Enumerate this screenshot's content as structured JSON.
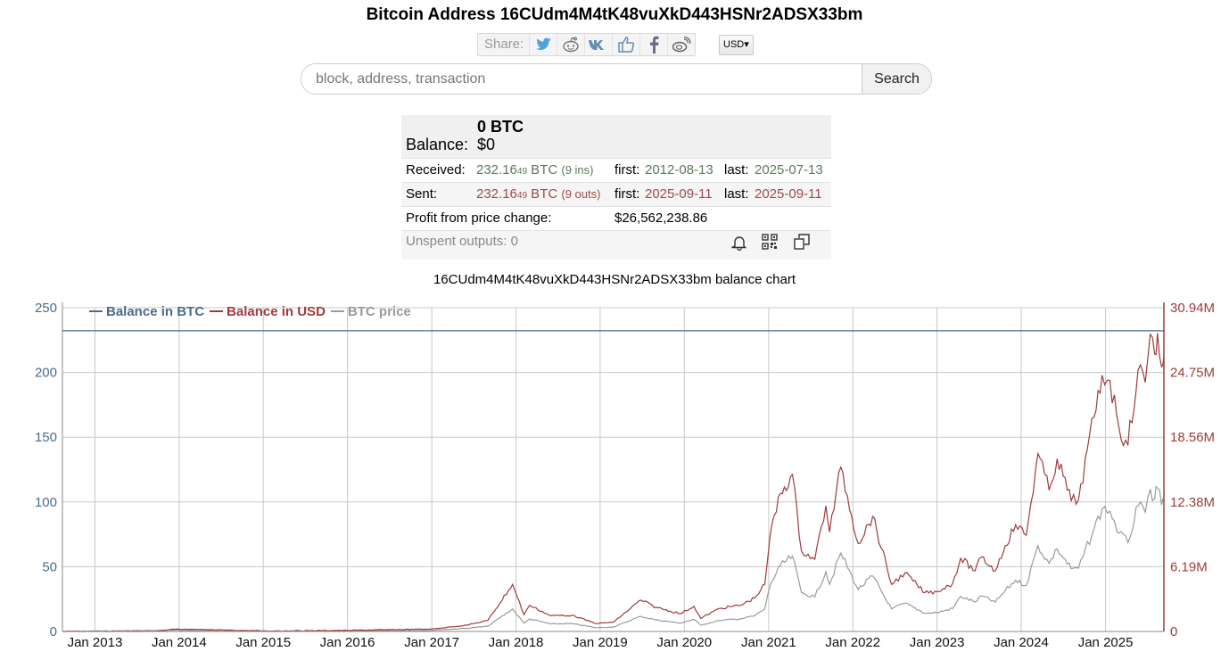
{
  "page": {
    "title": "Bitcoin Address 16CUdm4M4tK48vuXkD443HSNr2ADSX33bm"
  },
  "share": {
    "label": "Share:",
    "icons": [
      "twitter-icon",
      "reddit-icon",
      "vk-icon",
      "like-icon",
      "facebook-icon",
      "weibo-icon"
    ]
  },
  "currency": {
    "selected": "USD"
  },
  "search": {
    "placeholder": "block, address, transaction",
    "button_label": "Search"
  },
  "summary": {
    "balance_label": "Balance:",
    "balance_btc": "0 BTC",
    "balance_usd": "$0",
    "received_label": "Received:",
    "received_amount": "232.16",
    "received_small": "49",
    "received_unit": " BTC",
    "received_count": "(9 ins)",
    "received_first_label": "first:",
    "received_first": "2012-08-13",
    "received_last_label": "last:",
    "received_last": "2025-07-13",
    "sent_label": "Sent:",
    "sent_amount": "232.16",
    "sent_small": "49",
    "sent_unit": " BTC",
    "sent_count": "(9 outs)",
    "sent_first_label": "first:",
    "sent_first": "2025-09-11",
    "sent_last_label": "last:",
    "sent_last": "2025-09-11",
    "profit_label": "Profit from price change:",
    "profit_value": "$26,562,238.86",
    "unspent_label": "Unspent outputs: 0"
  },
  "colors": {
    "btc_balance": "#4a6b8a",
    "usd_balance": "#9e3b3b",
    "btc_price": "#9a9a9a",
    "grid": "#c8c8c8"
  },
  "chart_data": {
    "type": "line",
    "title": "16CUdm4M4tK48vuXkD443HSNr2ADSX33bm balance chart",
    "legend": [
      "Balance in BTC",
      "Balance in USD",
      "BTC price"
    ],
    "legend_position": "top-left",
    "grid": true,
    "x_ticks": [
      "Jan 2013",
      "Jan 2014",
      "Jan 2015",
      "Jan 2016",
      "Jan 2017",
      "Jan 2018",
      "Jan 2019",
      "Jan 2020",
      "Jan 2021",
      "Jan 2022",
      "Jan 2023",
      "Jan 2024",
      "Jan 2025"
    ],
    "xlim": [
      "2012-08-13",
      "2025-09-11"
    ],
    "y_left": {
      "ticks": [
        0,
        50,
        100,
        150,
        200,
        250
      ],
      "ylim": [
        0,
        250
      ]
    },
    "y_right": {
      "tick_labels": [
        "0",
        "6.19M",
        "12.38M",
        "18.56M",
        "24.75M",
        "30.94M"
      ],
      "ylim": [
        0,
        30940000
      ]
    },
    "series": [
      {
        "name": "Balance in BTC",
        "axis": "left",
        "points": [
          [
            "2012-08-13",
            232.16
          ],
          [
            "2025-09-11",
            232.16
          ]
        ]
      },
      {
        "name": "Balance in USD",
        "axis": "right",
        "points": [
          [
            "2012-08-13",
            2500
          ],
          [
            "2013-10-01",
            30000
          ],
          [
            "2013-12-01",
            230000
          ],
          [
            "2014-06-01",
            150000
          ],
          [
            "2015-01-15",
            45000
          ],
          [
            "2016-01-01",
            100000
          ],
          [
            "2016-06-15",
            160000
          ],
          [
            "2017-01-01",
            230000
          ],
          [
            "2017-06-01",
            600000
          ],
          [
            "2017-09-01",
            1050000
          ],
          [
            "2017-12-17",
            4500000
          ],
          [
            "2018-02-05",
            1600000
          ],
          [
            "2018-03-01",
            2500000
          ],
          [
            "2018-06-01",
            1500000
          ],
          [
            "2018-09-01",
            1550000
          ],
          [
            "2018-12-15",
            750000
          ],
          [
            "2019-03-01",
            900000
          ],
          [
            "2019-06-26",
            3000000
          ],
          [
            "2019-09-01",
            2300000
          ],
          [
            "2019-12-15",
            1700000
          ],
          [
            "2020-02-12",
            2400000
          ],
          [
            "2020-03-12",
            1250000
          ],
          [
            "2020-06-01",
            2200000
          ],
          [
            "2020-09-01",
            2500000
          ],
          [
            "2020-11-01",
            3200000
          ],
          [
            "2020-12-15",
            4500000
          ],
          [
            "2021-01-08",
            9300000
          ],
          [
            "2021-02-21",
            13200000
          ],
          [
            "2021-04-14",
            15000000
          ],
          [
            "2021-05-23",
            7700000
          ],
          [
            "2021-07-20",
            6900000
          ],
          [
            "2021-09-06",
            12000000
          ],
          [
            "2021-09-22",
            9500000
          ],
          [
            "2021-11-10",
            15700000
          ],
          [
            "2022-01-24",
            8400000
          ],
          [
            "2022-03-28",
            11000000
          ],
          [
            "2022-06-18",
            4500000
          ],
          [
            "2022-08-15",
            5600000
          ],
          [
            "2022-11-09",
            3700000
          ],
          [
            "2022-12-31",
            3800000
          ],
          [
            "2023-03-10",
            4600000
          ],
          [
            "2023-04-14",
            7000000
          ],
          [
            "2023-06-15",
            5800000
          ],
          [
            "2023-07-13",
            7100000
          ],
          [
            "2023-09-11",
            5800000
          ],
          [
            "2023-10-24",
            8200000
          ],
          [
            "2023-12-08",
            10200000
          ],
          [
            "2024-01-23",
            9200000
          ],
          [
            "2024-03-14",
            17000000
          ],
          [
            "2024-05-01",
            13500000
          ],
          [
            "2024-06-05",
            16500000
          ],
          [
            "2024-08-05",
            12500000
          ],
          [
            "2024-09-06",
            12600000
          ],
          [
            "2024-11-12",
            20500000
          ],
          [
            "2024-12-17",
            24500000
          ],
          [
            "2025-01-20",
            24000000
          ],
          [
            "2025-02-28",
            19500000
          ],
          [
            "2025-04-08",
            17800000
          ],
          [
            "2025-05-22",
            25000000
          ],
          [
            "2025-06-22",
            23800000
          ],
          [
            "2025-07-14",
            28400000
          ],
          [
            "2025-08-02",
            26500000
          ],
          [
            "2025-08-14",
            28500000
          ],
          [
            "2025-09-01",
            25300000
          ],
          [
            "2025-09-11",
            26200000
          ]
        ]
      },
      {
        "name": "BTC price",
        "axis": "right",
        "points": [
          [
            "2012-08-13",
            1000
          ],
          [
            "2013-12-01",
            110000
          ],
          [
            "2014-06-01",
            70000
          ],
          [
            "2015-01-15",
            20000
          ],
          [
            "2016-01-01",
            45000
          ],
          [
            "2016-06-15",
            75000
          ],
          [
            "2017-01-01",
            110000
          ],
          [
            "2017-06-01",
            300000
          ],
          [
            "2017-09-01",
            500000
          ],
          [
            "2017-12-17",
            2150000
          ],
          [
            "2018-02-05",
            780000
          ],
          [
            "2018-03-01",
            1200000
          ],
          [
            "2018-06-01",
            720000
          ],
          [
            "2018-09-01",
            750000
          ],
          [
            "2018-12-15",
            360000
          ],
          [
            "2019-03-01",
            430000
          ],
          [
            "2019-06-26",
            1450000
          ],
          [
            "2019-09-01",
            1100000
          ],
          [
            "2019-12-15",
            800000
          ],
          [
            "2020-02-12",
            1150000
          ],
          [
            "2020-03-12",
            600000
          ],
          [
            "2020-06-01",
            1050000
          ],
          [
            "2020-09-01",
            1200000
          ],
          [
            "2020-11-01",
            1500000
          ],
          [
            "2020-12-15",
            2150000
          ],
          [
            "2021-01-08",
            4500000
          ],
          [
            "2021-02-21",
            6300000
          ],
          [
            "2021-04-14",
            7200000
          ],
          [
            "2021-05-23",
            3700000
          ],
          [
            "2021-07-20",
            3300000
          ],
          [
            "2021-09-06",
            5700000
          ],
          [
            "2021-09-22",
            4500000
          ],
          [
            "2021-11-10",
            7500000
          ],
          [
            "2022-01-24",
            4000000
          ],
          [
            "2022-03-28",
            5300000
          ],
          [
            "2022-06-18",
            2150000
          ],
          [
            "2022-08-15",
            2700000
          ],
          [
            "2022-11-09",
            1750000
          ],
          [
            "2022-12-31",
            1800000
          ],
          [
            "2023-03-10",
            2200000
          ],
          [
            "2023-04-14",
            3350000
          ],
          [
            "2023-06-15",
            2800000
          ],
          [
            "2023-07-13",
            3400000
          ],
          [
            "2023-09-11",
            2800000
          ],
          [
            "2023-10-24",
            3900000
          ],
          [
            "2023-12-08",
            4900000
          ],
          [
            "2024-01-23",
            4400000
          ],
          [
            "2024-03-14",
            8200000
          ],
          [
            "2024-05-01",
            6500000
          ],
          [
            "2024-06-05",
            7900000
          ],
          [
            "2024-08-05",
            6000000
          ],
          [
            "2024-09-06",
            6050000
          ],
          [
            "2024-11-12",
            9800000
          ],
          [
            "2024-12-17",
            11700000
          ],
          [
            "2025-01-20",
            11500000
          ],
          [
            "2025-02-28",
            9400000
          ],
          [
            "2025-04-08",
            8500000
          ],
          [
            "2025-05-22",
            12000000
          ],
          [
            "2025-06-22",
            11400000
          ],
          [
            "2025-07-14",
            13600000
          ],
          [
            "2025-08-02",
            12700000
          ],
          [
            "2025-08-14",
            13700000
          ],
          [
            "2025-09-01",
            12100000
          ],
          [
            "2025-09-11",
            12500000
          ]
        ]
      }
    ]
  }
}
